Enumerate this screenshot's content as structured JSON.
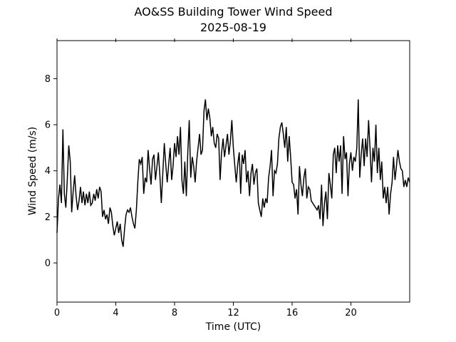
{
  "chart_data": {
    "type": "line",
    "title": "AO&SS Building Tower Wind Speed",
    "subtitle": "2025-08-19",
    "xlabel": "Time (UTC)",
    "ylabel": "Wind Speed (m/s)",
    "xlim": [
      0,
      24
    ],
    "ylim": [
      -1.7,
      9.65
    ],
    "xticks": [
      0,
      4,
      8,
      12,
      16,
      20
    ],
    "yticks": [
      0,
      2,
      4,
      6,
      8
    ],
    "grid": false,
    "legend": null,
    "background_color": "#ffffff",
    "line_color": "#000000",
    "line_width": 1.5,
    "x_unit": "hours",
    "x_start": 0,
    "x_step": 0.1,
    "values": [
      1.3,
      2.8,
      3.4,
      2.6,
      5.8,
      3.0,
      2.4,
      3.6,
      5.1,
      4.4,
      2.2,
      3.1,
      3.8,
      2.9,
      2.3,
      2.7,
      3.3,
      2.6,
      3.1,
      2.5,
      3.0,
      2.6,
      3.1,
      2.5,
      2.6,
      3.0,
      2.7,
      3.2,
      2.8,
      3.3,
      3.1,
      2.0,
      2.3,
      1.9,
      2.1,
      1.7,
      2.4,
      2.2,
      1.6,
      1.2,
      1.5,
      1.8,
      1.3,
      1.7,
      1.0,
      0.7,
      1.5,
      2.1,
      2.3,
      2.2,
      2.4,
      2.0,
      1.7,
      1.5,
      2.3,
      3.5,
      4.5,
      4.3,
      4.6,
      3.0,
      3.7,
      3.5,
      4.9,
      4.1,
      3.4,
      4.5,
      4.7,
      3.6,
      4.2,
      4.8,
      3.8,
      2.6,
      3.9,
      5.2,
      4.3,
      3.5,
      4.3,
      5.0,
      3.6,
      4.2,
      5.2,
      4.6,
      5.5,
      4.7,
      5.9,
      3.6,
      3.0,
      4.4,
      2.9,
      4.8,
      6.2,
      3.7,
      4.6,
      4.2,
      3.5,
      4.4,
      5.0,
      5.6,
      4.7,
      4.9,
      6.6,
      7.1,
      6.2,
      6.7,
      6.3,
      5.5,
      5.9,
      5.2,
      5.0,
      5.6,
      5.4,
      3.6,
      4.8,
      5.4,
      4.6,
      5.1,
      5.6,
      4.7,
      5.3,
      6.2,
      5.0,
      4.2,
      3.5,
      4.3,
      4.8,
      3.0,
      4.7,
      4.3,
      4.9,
      3.5,
      4.0,
      2.9,
      3.9,
      4.3,
      3.4,
      3.9,
      4.1,
      2.6,
      2.3,
      2.0,
      2.8,
      2.4,
      2.8,
      2.6,
      3.7,
      4.2,
      4.9,
      2.9,
      4.0,
      3.9,
      4.3,
      5.4,
      5.9,
      6.1,
      5.6,
      5.0,
      5.9,
      4.4,
      5.5,
      4.6,
      3.5,
      3.4,
      2.8,
      3.2,
      2.1,
      4.2,
      3.4,
      2.9,
      3.7,
      4.1,
      2.8,
      3.3,
      3.2,
      2.7,
      2.6,
      2.5,
      2.4,
      2.3,
      2.5,
      1.9,
      3.4,
      1.6,
      2.6,
      3.1,
      1.9,
      3.9,
      3.4,
      2.8,
      4.7,
      5.0,
      3.9,
      5.1,
      4.4,
      5.1,
      3.0,
      5.5,
      4.5,
      4.8,
      2.9,
      4.3,
      4.8,
      4.0,
      4.6,
      4.4,
      5.0,
      7.1,
      3.7,
      4.7,
      5.4,
      4.2,
      5.4,
      4.6,
      6.2,
      5.0,
      3.5,
      5.0,
      4.4,
      6.0,
      3.9,
      5.0,
      3.6,
      4.4,
      2.8,
      3.3,
      2.6,
      3.3,
      2.1,
      3.0,
      3.5,
      4.6,
      3.6,
      4.2,
      4.9,
      4.4,
      4.1,
      4.0,
      3.3,
      3.6,
      3.3,
      3.7,
      3.5
    ]
  }
}
